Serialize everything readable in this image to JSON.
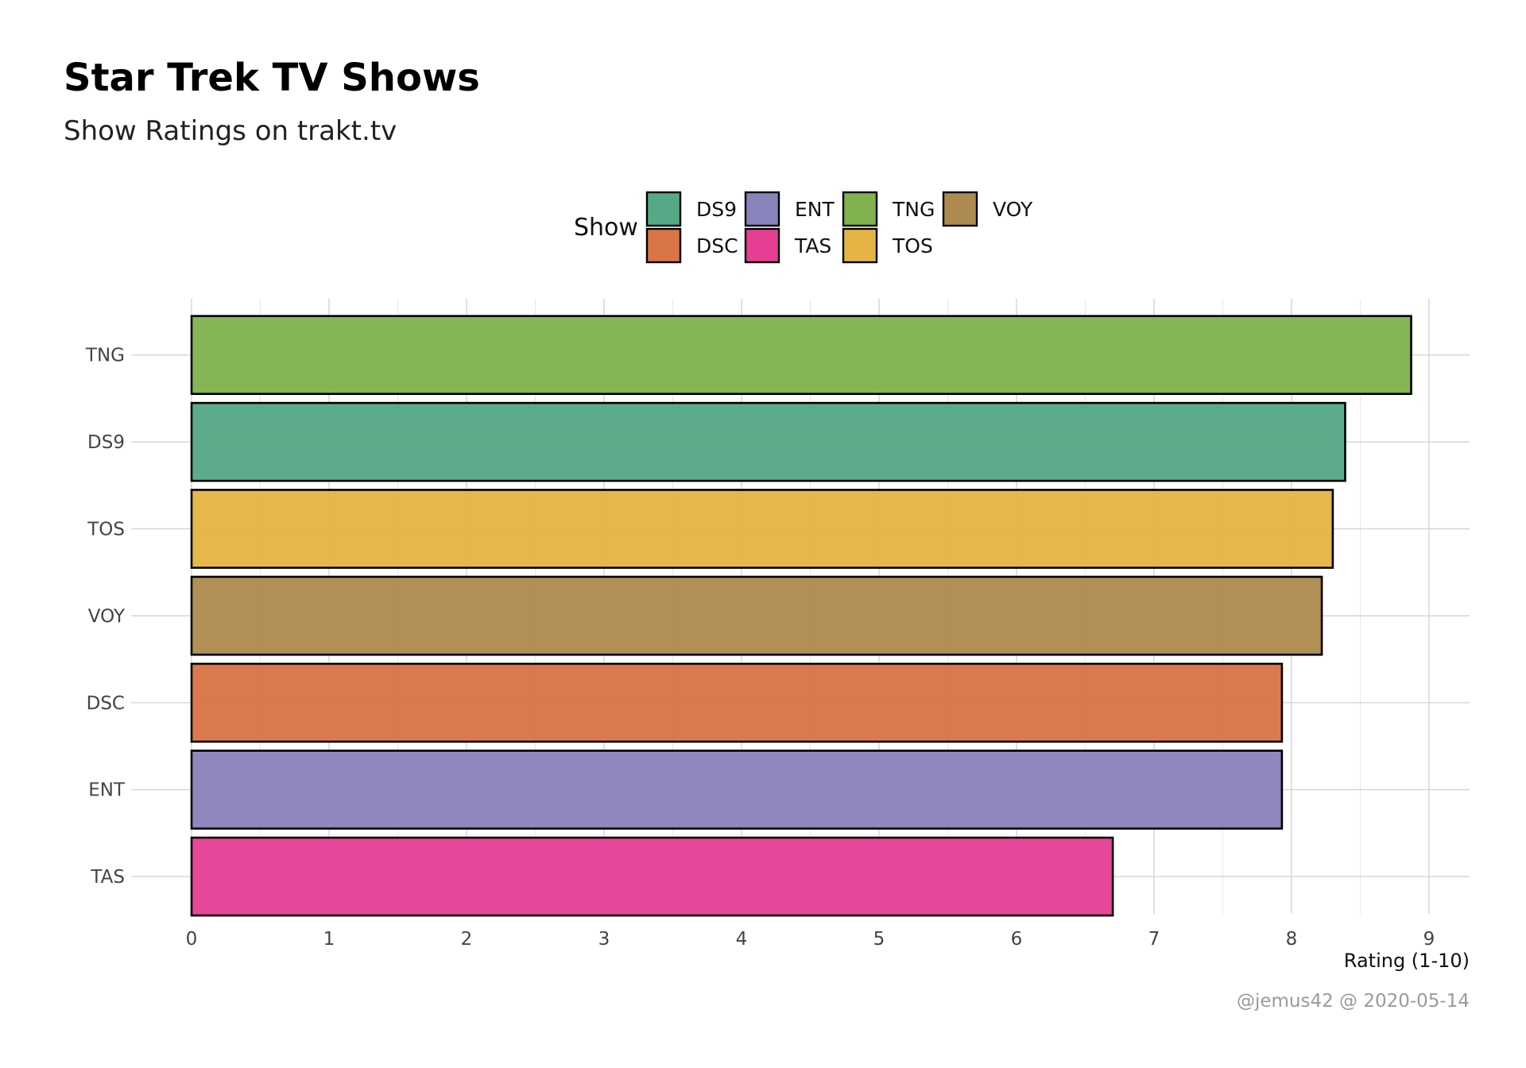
{
  "chart_data": {
    "type": "bar",
    "orientation": "horizontal",
    "title": "Star Trek TV Shows",
    "subtitle": "Show Ratings on trakt.tv",
    "xlabel": "Rating (1-10)",
    "ylabel": "",
    "xlim": [
      0,
      9.3
    ],
    "x_ticks": [
      0,
      1,
      2,
      3,
      4,
      5,
      6,
      7,
      8,
      9
    ],
    "grid": true,
    "legend": {
      "title": "Show",
      "position": "top",
      "entries": [
        {
          "label": "DS9",
          "color": "#55a986"
        },
        {
          "label": "DSC",
          "color": "#d97447"
        },
        {
          "label": "ENT",
          "color": "#8983bb"
        },
        {
          "label": "TAS",
          "color": "#e63f94"
        },
        {
          "label": "TNG",
          "color": "#80b24d"
        },
        {
          "label": "TOS",
          "color": "#e4b445"
        },
        {
          "label": "VOY",
          "color": "#ad8b50"
        }
      ]
    },
    "categories": [
      "TNG",
      "DS9",
      "TOS",
      "VOY",
      "DSC",
      "ENT",
      "TAS"
    ],
    "values": [
      8.87,
      8.39,
      8.3,
      8.22,
      7.93,
      7.93,
      6.7
    ],
    "colors": [
      "#80b24d",
      "#55a986",
      "#e4b445",
      "#ad8b50",
      "#d97447",
      "#8983bb",
      "#e63f94"
    ],
    "caption": "@jemus42 @ 2020-05-14"
  }
}
